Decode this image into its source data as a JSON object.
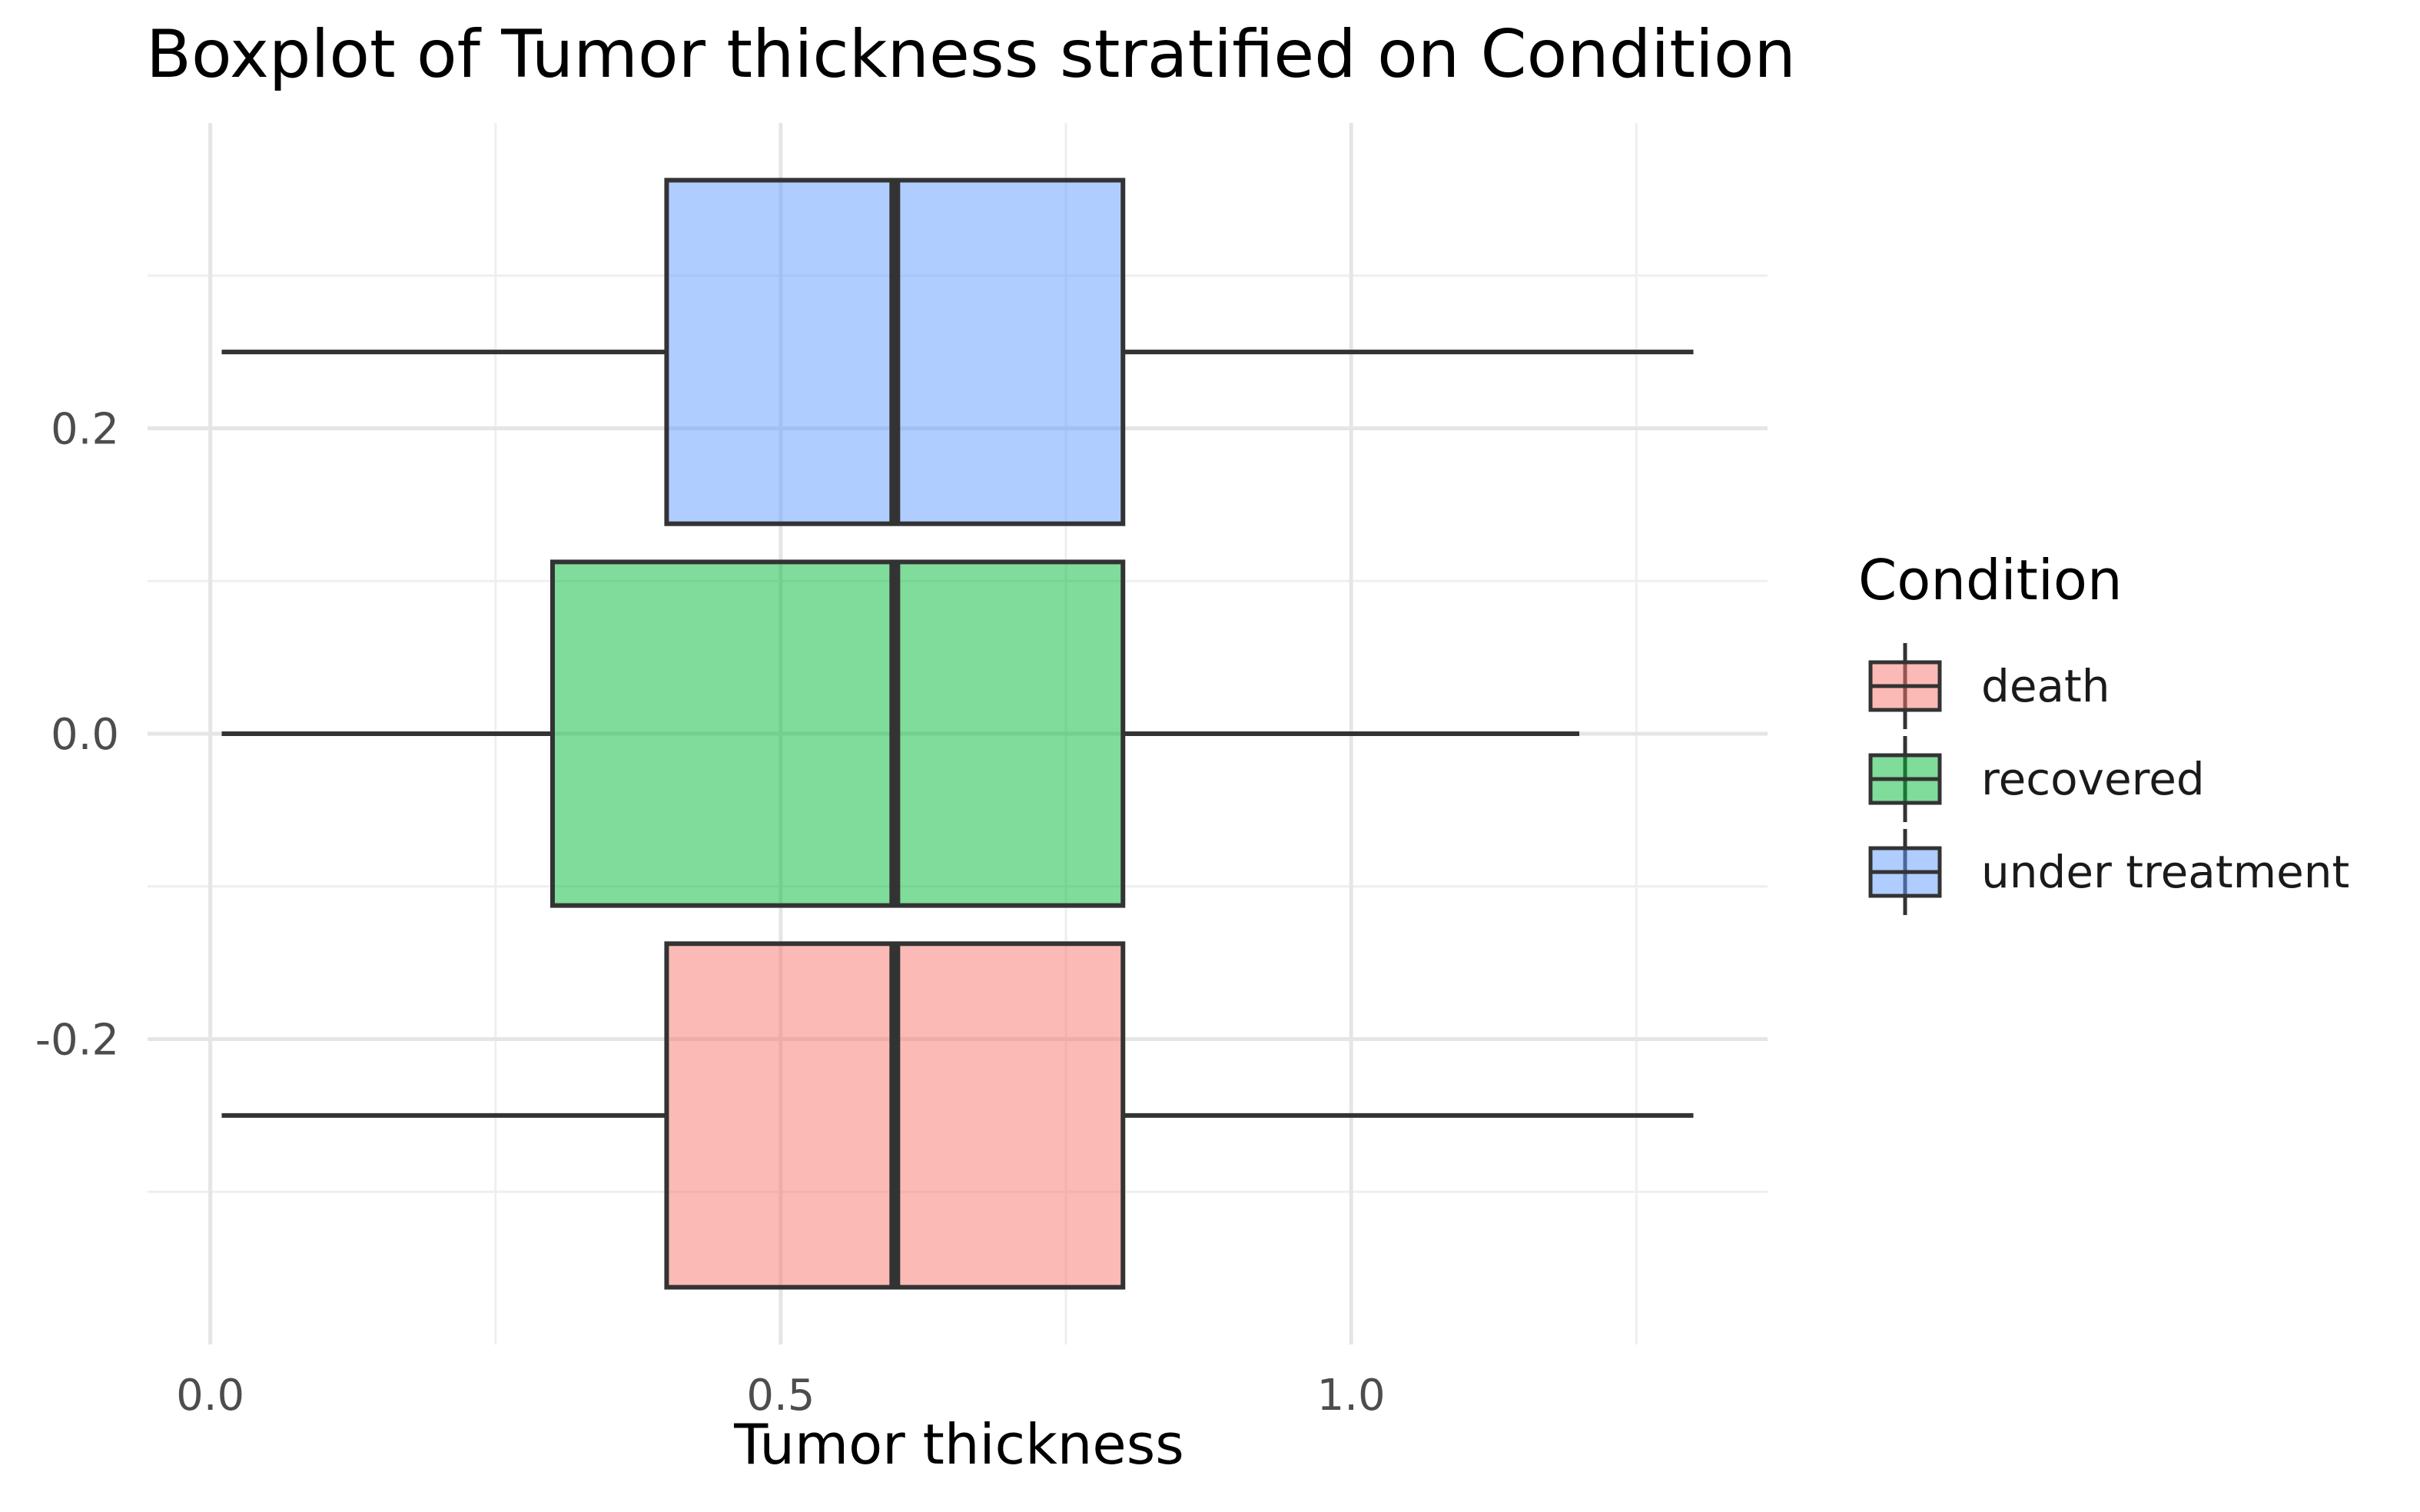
{
  "chart_data": {
    "type": "boxplot",
    "title": "Boxplot of Tumor thickness stratified on Condition",
    "xlabel": "Tumor thickness",
    "ylabel": "",
    "xlim": [
      -0.055,
      1.365
    ],
    "ylim": [
      -0.4,
      0.4
    ],
    "x_ticks": [
      0.0,
      0.5,
      1.0
    ],
    "x_tick_labels": [
      "0.0",
      "0.5",
      "1.0"
    ],
    "x_minor_ticks": [
      0.25,
      0.75,
      1.25
    ],
    "y_ticks": [
      -0.2,
      0.0,
      0.2
    ],
    "y_tick_labels": [
      "-0.2",
      "0.0",
      "0.2"
    ],
    "y_minor_ticks": [
      -0.3,
      -0.1,
      0.1,
      0.3
    ],
    "grid": true,
    "orientation": "horizontal",
    "legend": {
      "title": "Condition",
      "position": "right",
      "entries": [
        "death",
        "recovered",
        "under treatment"
      ]
    },
    "series": [
      {
        "name": "death",
        "color": "#F8766D",
        "y_center": -0.25,
        "box_half_height": 0.1125,
        "min": 0.01,
        "q1": 0.4,
        "median": 0.6,
        "q3": 0.8,
        "max": 1.3
      },
      {
        "name": "recovered",
        "color": "#00BA38",
        "y_center": 0.0,
        "box_half_height": 0.1125,
        "min": 0.01,
        "q1": 0.3,
        "median": 0.6,
        "q3": 0.8,
        "max": 1.2
      },
      {
        "name": "under treatment",
        "color": "#619CFF",
        "y_center": 0.25,
        "box_half_height": 0.1125,
        "min": 0.01,
        "q1": 0.4,
        "median": 0.6,
        "q3": 0.8,
        "max": 1.3
      }
    ]
  }
}
